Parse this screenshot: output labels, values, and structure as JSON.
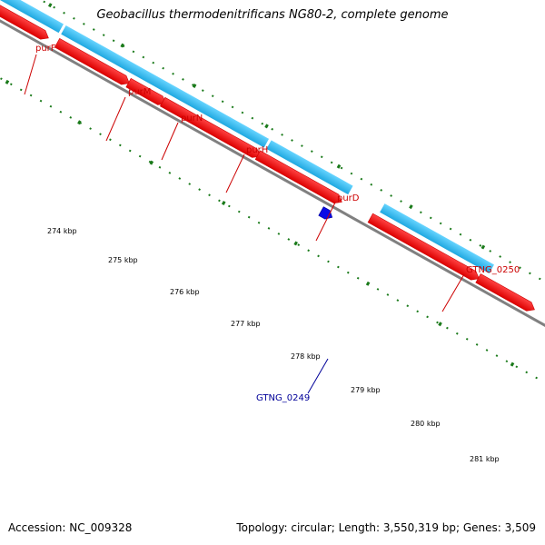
{
  "header": {
    "title": "Geobacillus thermodenitrificans NG80-2, complete genome"
  },
  "footer": {
    "accession": "Accession: NC_009328",
    "summary": "Topology: circular; Length: 3,550,319 bp; Genes: 3,509"
  },
  "scale_labels": [
    "274 kbp",
    "275 kbp",
    "276 kbp",
    "277 kbp",
    "278 kbp",
    "279 kbp",
    "280 kbp",
    "281 kbp"
  ],
  "genes": [
    {
      "label": "purF",
      "color": "#cc0000"
    },
    {
      "label": "purM",
      "color": "#cc0000"
    },
    {
      "label": "purN",
      "color": "#cc0000"
    },
    {
      "label": "purH",
      "color": "#cc0000"
    },
    {
      "label": "purD",
      "color": "#cc0000"
    },
    {
      "label": "GTNG_0250",
      "color": "#cc0000"
    },
    {
      "label": "GTNG_0249",
      "color": "#000099"
    }
  ],
  "colors": {
    "cds_forward": "#ff1a1a",
    "cds_forward_edge": "#cc0000",
    "gene_track": "#33bbee",
    "reverse_feature": "#0a0ae6",
    "backbone": "#808080",
    "tick": "#1a7a1a"
  }
}
